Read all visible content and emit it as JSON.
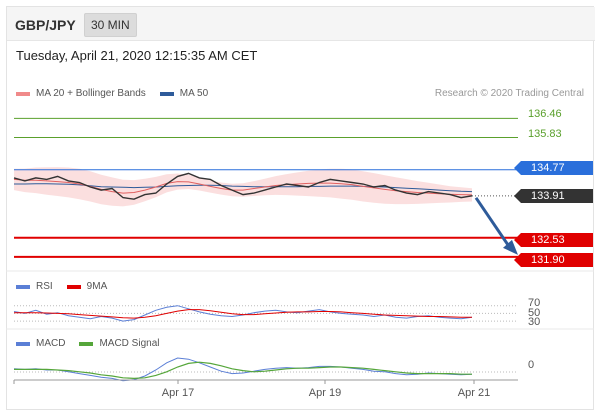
{
  "header": {
    "pair": "GBP/JPY",
    "timeframe": "30 MIN"
  },
  "datetime": "Tuesday, April 21, 2020 12:15:35 AM CET",
  "legend_main": [
    {
      "label": "MA 20 + Bollinger Bands",
      "color": "#f08a8a"
    },
    {
      "label": "MA 50",
      "color": "#2e5b9a"
    }
  ],
  "credit": "Research © 2020 Trading Central",
  "levels": [
    {
      "value": "136.46",
      "kind": "resistance-plain",
      "color": "#5aa02c"
    },
    {
      "value": "135.83",
      "kind": "resistance-plain",
      "color": "#5aa02c"
    },
    {
      "value": "134.77",
      "kind": "pivot",
      "color": "#2a6fdb"
    },
    {
      "value": "133.91",
      "kind": "last",
      "color": "#333333"
    },
    {
      "value": "132.53",
      "kind": "support",
      "color": "#e00000"
    },
    {
      "value": "131.90",
      "kind": "support",
      "color": "#e00000"
    }
  ],
  "legend_rsi": [
    {
      "label": "RSI",
      "color": "#5b7fd6"
    },
    {
      "label": "9MA",
      "color": "#e00000"
    }
  ],
  "rsi_ticks": [
    "70",
    "50",
    "30"
  ],
  "legend_macd": [
    {
      "label": "MACD",
      "color": "#5b7fd6"
    },
    {
      "label": "MACD Signal",
      "color": "#55a63a"
    }
  ],
  "macd_ticks": [
    "0"
  ],
  "x_labels": [
    "Apr 17",
    "Apr 19",
    "Apr 21"
  ],
  "chart_data": {
    "type": "line",
    "instrument": "GBP/JPY",
    "interval": "30 MIN",
    "x_labels": [
      "Apr 17",
      "Apr 19",
      "Apr 21"
    ],
    "price_levels": [
      136.46,
      135.83,
      134.77,
      133.91,
      132.53,
      131.9
    ],
    "ylim": [
      131.5,
      137.0
    ],
    "series": [
      {
        "values": [
          134.5,
          134.4,
          134.5,
          134.45,
          134.55,
          134.4,
          134.35,
          134.2,
          134.1,
          134.15,
          133.85,
          133.8,
          133.95,
          134.0,
          134.3,
          134.55,
          134.65,
          134.5,
          134.45,
          134.25,
          134.1,
          133.95,
          134.0,
          134.1,
          134.2,
          134.3,
          134.25,
          134.2,
          134.35,
          134.45,
          134.4,
          134.35,
          134.3,
          134.2,
          134.25,
          134.1,
          134.0,
          133.95,
          134.05,
          134.0,
          133.95,
          133.85,
          133.91
        ]
      },
      {
        "name": "MA 20 + Bollinger Bands",
        "values": [
          134.45,
          134.42,
          134.42,
          134.4,
          134.38,
          134.35,
          134.3,
          134.22,
          134.12,
          134.05,
          134.0,
          134.02,
          134.1,
          134.2,
          134.32,
          134.38,
          134.37,
          134.3,
          134.22,
          134.15,
          134.1,
          134.1,
          134.15,
          134.2,
          134.25,
          134.28,
          134.3,
          134.32,
          134.33,
          134.33,
          134.31,
          134.28,
          134.22,
          134.17,
          134.12,
          134.08,
          134.05,
          134.02,
          134.0,
          133.98,
          133.96,
          133.95,
          133.94
        ]
      },
      {
        "name": "MA 50",
        "values": [
          134.3,
          134.3,
          134.31,
          134.31,
          134.3,
          134.29,
          134.27,
          134.24,
          134.21,
          134.2,
          134.19,
          134.18,
          134.19,
          134.2,
          134.22,
          134.24,
          134.25,
          134.26,
          134.26,
          134.25,
          134.23,
          134.22,
          134.21,
          134.21,
          134.21,
          134.21,
          134.21,
          134.22,
          134.22,
          134.23,
          134.23,
          134.23,
          134.22,
          134.21,
          134.2,
          134.18,
          134.16,
          134.14,
          134.12,
          134.1,
          134.08,
          134.06,
          134.05
        ]
      }
    ],
    "rsi": {
      "ticks": [
        70,
        50,
        30
      ],
      "series": [
        {
          "name": "RSI",
          "values": [
            55,
            50,
            58,
            48,
            52,
            44,
            40,
            36,
            42,
            38,
            30,
            34,
            46,
            58,
            66,
            70,
            62,
            54,
            48,
            44,
            42,
            46,
            52,
            56,
            58,
            54,
            52,
            56,
            60,
            54,
            50,
            48,
            46,
            42,
            46,
            40,
            38,
            42,
            44,
            40,
            38,
            36,
            40
          ]
        },
        {
          "name": "9MA",
          "values": [
            52,
            52,
            52,
            51,
            50,
            49,
            47,
            45,
            43,
            41,
            39,
            38,
            40,
            44,
            50,
            56,
            60,
            60,
            57,
            53,
            49,
            47,
            47,
            49,
            51,
            53,
            54,
            54,
            55,
            55,
            54,
            52,
            50,
            48,
            46,
            45,
            44,
            43,
            42,
            42,
            41,
            40,
            40
          ]
        }
      ]
    },
    "macd": {
      "ticks": [
        0
      ],
      "series": [
        {
          "name": "MACD",
          "values": [
            0.02,
            0.01,
            0.02,
            0.0,
            0.0,
            -0.03,
            -0.06,
            -0.09,
            -0.12,
            -0.14,
            -0.18,
            -0.16,
            -0.1,
            0.0,
            0.12,
            0.2,
            0.18,
            0.12,
            0.05,
            -0.02,
            -0.06,
            -0.05,
            -0.02,
            0.01,
            0.03,
            0.04,
            0.03,
            0.04,
            0.06,
            0.06,
            0.05,
            0.03,
            0.01,
            -0.02,
            -0.03,
            -0.06,
            -0.08,
            -0.07,
            -0.05,
            -0.06,
            -0.07,
            -0.08,
            -0.07
          ]
        },
        {
          "name": "MACD Signal",
          "values": [
            0.01,
            0.01,
            0.01,
            0.01,
            0.0,
            -0.01,
            -0.03,
            -0.05,
            -0.08,
            -0.1,
            -0.13,
            -0.14,
            -0.13,
            -0.09,
            -0.03,
            0.05,
            0.11,
            0.13,
            0.11,
            0.07,
            0.02,
            -0.01,
            -0.03,
            -0.02,
            0.0,
            0.02,
            0.03,
            0.03,
            0.04,
            0.05,
            0.05,
            0.04,
            0.03,
            0.01,
            -0.01,
            -0.03,
            -0.05,
            -0.06,
            -0.06,
            -0.06,
            -0.06,
            -0.07,
            -0.07
          ]
        }
      ]
    }
  }
}
